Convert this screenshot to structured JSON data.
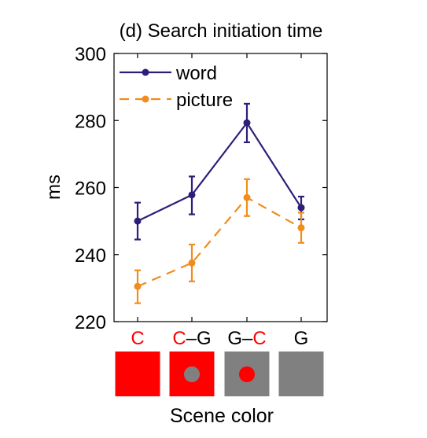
{
  "chart_data": {
    "type": "line",
    "title": "(d) Search initiation time",
    "xlabel": "Scene color",
    "ylabel": "ms",
    "ylim": [
      220,
      300
    ],
    "yticks": [
      220,
      240,
      260,
      280,
      300
    ],
    "categories": [
      {
        "parts": [
          {
            "text": "C",
            "color": "#ff0000"
          }
        ]
      },
      {
        "parts": [
          {
            "text": "C",
            "color": "#ff0000"
          },
          {
            "text": "–G",
            "color": "#000000"
          }
        ]
      },
      {
        "parts": [
          {
            "text": "G–",
            "color": "#000000"
          },
          {
            "text": "C",
            "color": "#ff0000"
          }
        ]
      },
      {
        "parts": [
          {
            "text": "G",
            "color": "#000000"
          }
        ]
      }
    ],
    "swatches": [
      {
        "bg": "#ff0000",
        "dot": null
      },
      {
        "bg": "#ff0000",
        "dot": "#808080"
      },
      {
        "bg": "#808080",
        "dot": "#ff0000"
      },
      {
        "bg": "#808080",
        "dot": null
      }
    ],
    "legend_position": "top-left",
    "series": [
      {
        "name": "word",
        "color": "#2b1f7a",
        "dash": "solid",
        "values": [
          250.0,
          257.8,
          279.3,
          254.0
        ],
        "err_low": [
          244.5,
          252.0,
          273.5,
          250.5
        ],
        "err_high": [
          255.5,
          263.3,
          285.0,
          257.3
        ]
      },
      {
        "name": "picture",
        "color": "#f28c1c",
        "dash": "dashed",
        "values": [
          230.5,
          237.5,
          257.0,
          248.0
        ],
        "err_low": [
          225.5,
          232.0,
          251.5,
          243.5
        ],
        "err_high": [
          235.3,
          243.0,
          262.5,
          252.5
        ]
      }
    ]
  }
}
